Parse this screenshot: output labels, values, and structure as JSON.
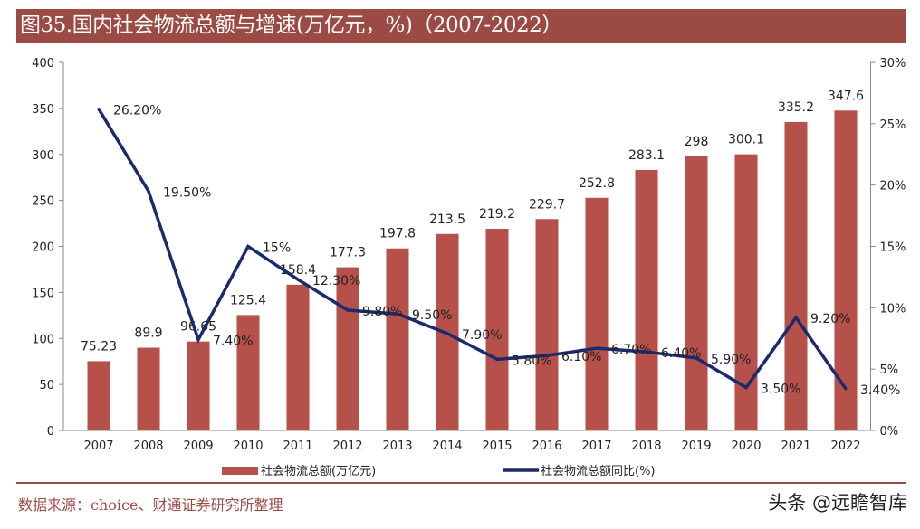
{
  "title": "图35.国内社会物流总额与增速(万亿元，%)（2007-2022）",
  "source": "数据来源：choice、财通证券研究所整理",
  "watermark": "头条 @远瞻智库",
  "colors": {
    "bar": "#b5504a",
    "line": "#1a2a6c",
    "title_bg": "#9c4a44"
  },
  "chart_data": {
    "type": "bar+line",
    "categories": [
      "2007",
      "2008",
      "2009",
      "2010",
      "2011",
      "2012",
      "2013",
      "2014",
      "2015",
      "2016",
      "2017",
      "2018",
      "2019",
      "2020",
      "2021",
      "2022"
    ],
    "series": [
      {
        "name": "社会物流总额(万亿元)",
        "type": "bar",
        "axis": "left",
        "values": [
          75.23,
          89.9,
          96.65,
          125.4,
          158.4,
          177.3,
          197.8,
          213.5,
          219.2,
          229.7,
          252.8,
          283.1,
          298,
          300.1,
          335.2,
          347.6
        ],
        "labels": [
          "75.23",
          "89.9",
          "96.65",
          "125.4",
          "158.4",
          "177.3",
          "197.8",
          "213.5",
          "219.2",
          "229.7",
          "252.8",
          "283.1",
          "298",
          "300.1",
          "335.2",
          "347.6"
        ]
      },
      {
        "name": "社会物流总额同比(%)",
        "type": "line",
        "axis": "right",
        "values": [
          26.2,
          19.5,
          7.4,
          15,
          12.3,
          9.8,
          9.5,
          7.9,
          5.8,
          6.1,
          6.7,
          6.4,
          5.9,
          3.5,
          9.2,
          3.4
        ],
        "labels": [
          "26.20%",
          "19.50%",
          "7.40%",
          "15%",
          "12.30%",
          "9.80%",
          "9.50%",
          "7.90%",
          "5.80%",
          "6.10%",
          "6.70%",
          "6.40%",
          "5.90%",
          "3.50%",
          "9.20%",
          "3.40%"
        ]
      }
    ],
    "y_left": {
      "range": [
        0,
        400
      ],
      "ticks": [
        "0",
        "50",
        "100",
        "150",
        "200",
        "250",
        "300",
        "350",
        "400"
      ]
    },
    "y_right": {
      "range": [
        0,
        30
      ],
      "ticks": [
        "0%",
        "5%",
        "10%",
        "15%",
        "20%",
        "25%",
        "30%"
      ]
    },
    "grid": false,
    "legend_position": "bottom"
  }
}
